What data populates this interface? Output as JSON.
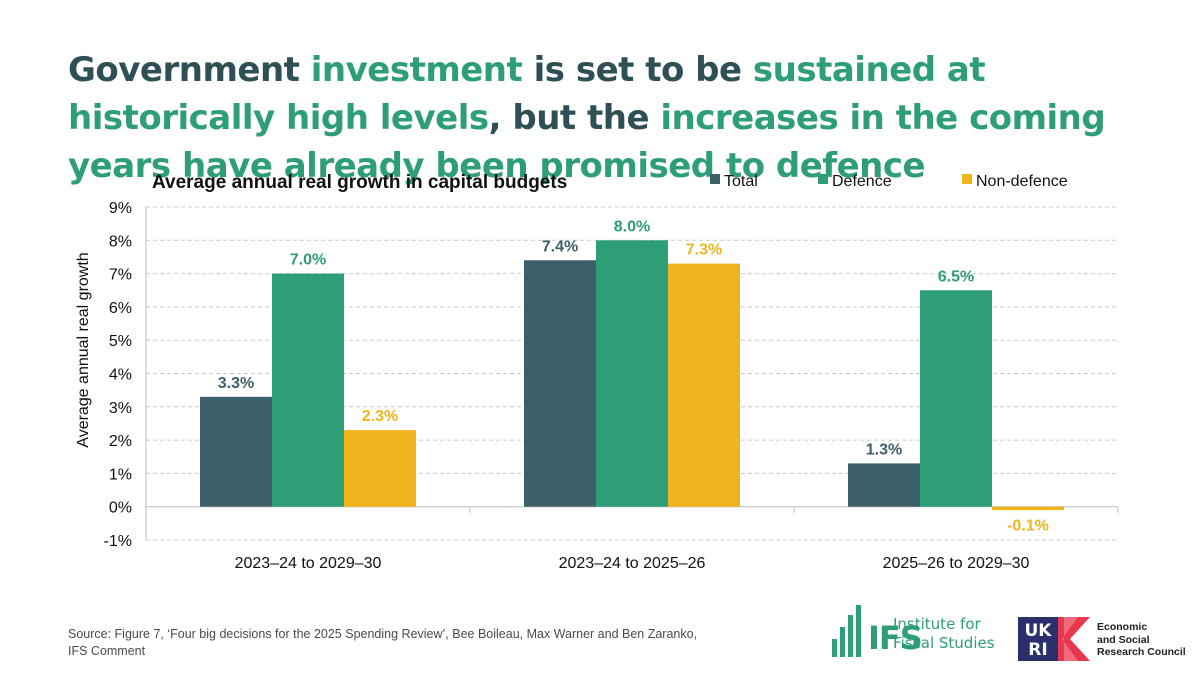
{
  "headline": {
    "p1": "Government ",
    "p2": "investment",
    "p3": " is set to be ",
    "p4": "sustained at historically high levels",
    "p5": ", but the ",
    "p6": "increases in the coming years have already been promised to defence"
  },
  "chart_data": {
    "type": "bar",
    "title": "Average annual real growth in capital budgets",
    "ylabel": "Average annual real growth",
    "xlabel": "",
    "ylim": [
      -1,
      9
    ],
    "yticks": [
      "-1%",
      "0%",
      "1%",
      "2%",
      "3%",
      "4%",
      "5%",
      "6%",
      "7%",
      "8%",
      "9%"
    ],
    "grid": true,
    "legend_position": "top-right",
    "categories": [
      "2023–24 to 2029–30",
      "2023–24 to 2025–26",
      "2025–26 to 2029–30"
    ],
    "series": [
      {
        "name": "Total",
        "color": "#3d6068",
        "values": [
          3.3,
          7.4,
          1.3
        ],
        "labels": [
          "3.3%",
          "7.4%",
          "1.3%"
        ]
      },
      {
        "name": "Defence",
        "color": "#2e9e76",
        "values": [
          7.0,
          8.0,
          6.5
        ],
        "labels": [
          "7.0%",
          "8.0%",
          "6.5%"
        ]
      },
      {
        "name": "Non-defence",
        "color": "#f0b41c",
        "values": [
          2.3,
          7.3,
          -0.1
        ],
        "labels": [
          "2.3%",
          "7.3%",
          "-0.1%"
        ]
      }
    ]
  },
  "source": "Source: Figure 7, ‘Four big decisions for the 2025 Spending Review’, Bee Boileau, Max Warner and Ben Zaranko, IFS Comment",
  "logos": {
    "ifs_word": "IFS",
    "ifs_line1": "Institute for",
    "ifs_line2": "Fiscal Studies",
    "ukri_line1": "Economic",
    "ukri_line2": "and Social",
    "ukri_line3": "Research Council"
  },
  "colors": {
    "dark": "#2e4f55",
    "accent": "#2e9e76",
    "yellow": "#f0b41c"
  }
}
